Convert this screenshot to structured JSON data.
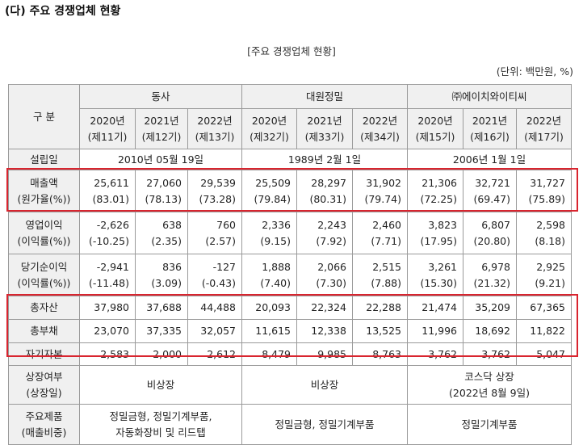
{
  "heading": "(다) 주요 경쟁업체 현황",
  "subtitle": "[주요 경쟁업체 현황]",
  "unit": "(단위: 백만원, %)",
  "table": {
    "corner_label": "구 분",
    "companies": [
      "동사",
      "대원정밀",
      "㈜에이치와이티씨"
    ],
    "periods": [
      [
        "2020년",
        "(제11기)",
        "2021년",
        "(제12기)",
        "2022년",
        "(제13기)"
      ],
      [
        "2020년",
        "(제32기)",
        "2021년",
        "(제33기)",
        "2022년",
        "(제34기)"
      ],
      [
        "2020년",
        "(제15기)",
        "2021년",
        "(제16기)",
        "2022년",
        "(제17기)"
      ]
    ],
    "established": {
      "label": "설립일",
      "values": [
        "2010년 05월 19일",
        "1989년 2월 1일",
        "2006년 1월 1일"
      ]
    },
    "revenue": {
      "label": "매출액",
      "sub_label": "(원가율(%))",
      "values": [
        "25,611",
        "27,060",
        "29,539",
        "25,509",
        "28,297",
        "31,902",
        "21,306",
        "32,721",
        "31,727"
      ],
      "sub_values": [
        "(83.01)",
        "(78.13)",
        "(73.28)",
        "(79.84)",
        "(80.31)",
        "(79.74)",
        "(72.25)",
        "(69.47)",
        "(75.89)"
      ]
    },
    "operating_income": {
      "label": "영업이익",
      "sub_label": "(이익률(%))",
      "values": [
        "-2,626",
        "638",
        "760",
        "2,336",
        "2,243",
        "2,460",
        "3,823",
        "6,807",
        "2,598"
      ],
      "sub_values": [
        "(-10.25)",
        "(2.35)",
        "(2.57)",
        "(9.15)",
        "(7.92)",
        "(7.71)",
        "(17.95)",
        "(20.80)",
        "(8.18)"
      ]
    },
    "net_income": {
      "label": "당기순이익",
      "sub_label": "(이익률(%))",
      "values": [
        "-2,941",
        "836",
        "-127",
        "1,888",
        "2,066",
        "2,515",
        "3,261",
        "6,978",
        "2,925"
      ],
      "sub_values": [
        "(-11.48)",
        "(3.09)",
        "(-0.43)",
        "(7.40)",
        "(7.30)",
        "(7.88)",
        "(15.30)",
        "(21.32)",
        "(9.21)"
      ]
    },
    "total_assets": {
      "label": "총자산",
      "values": [
        "37,980",
        "37,688",
        "44,488",
        "20,093",
        "22,324",
        "22,288",
        "21,474",
        "35,209",
        "67,365"
      ]
    },
    "total_liabilities": {
      "label": "총부채",
      "values": [
        "23,070",
        "37,335",
        "32,057",
        "11,615",
        "12,338",
        "13,525",
        "11,996",
        "18,692",
        "11,822"
      ]
    },
    "equity": {
      "label": "자기자본",
      "values": [
        "2,583",
        "2,000",
        "2,612",
        "8,479",
        "9,985",
        "8,763",
        "3,762",
        "3,762",
        "5,047"
      ]
    },
    "listing": {
      "label_line1": "상장여부",
      "label_line2": "(상장일)",
      "values": [
        "비상장",
        "비상장"
      ],
      "third_line1": "코스닥 상장",
      "third_line2": "(2022년 8월 9일)"
    },
    "products": {
      "label_line1": "주요제품",
      "label_line2": "(매출비중)",
      "first_line1": "정밀금형, 정밀기계부품,",
      "first_line2": "자동화장비 및 리드탭",
      "values": [
        "정밀금형, 정밀기계부품",
        "정밀기계부품"
      ]
    }
  },
  "highlight_color": "#d9252f"
}
